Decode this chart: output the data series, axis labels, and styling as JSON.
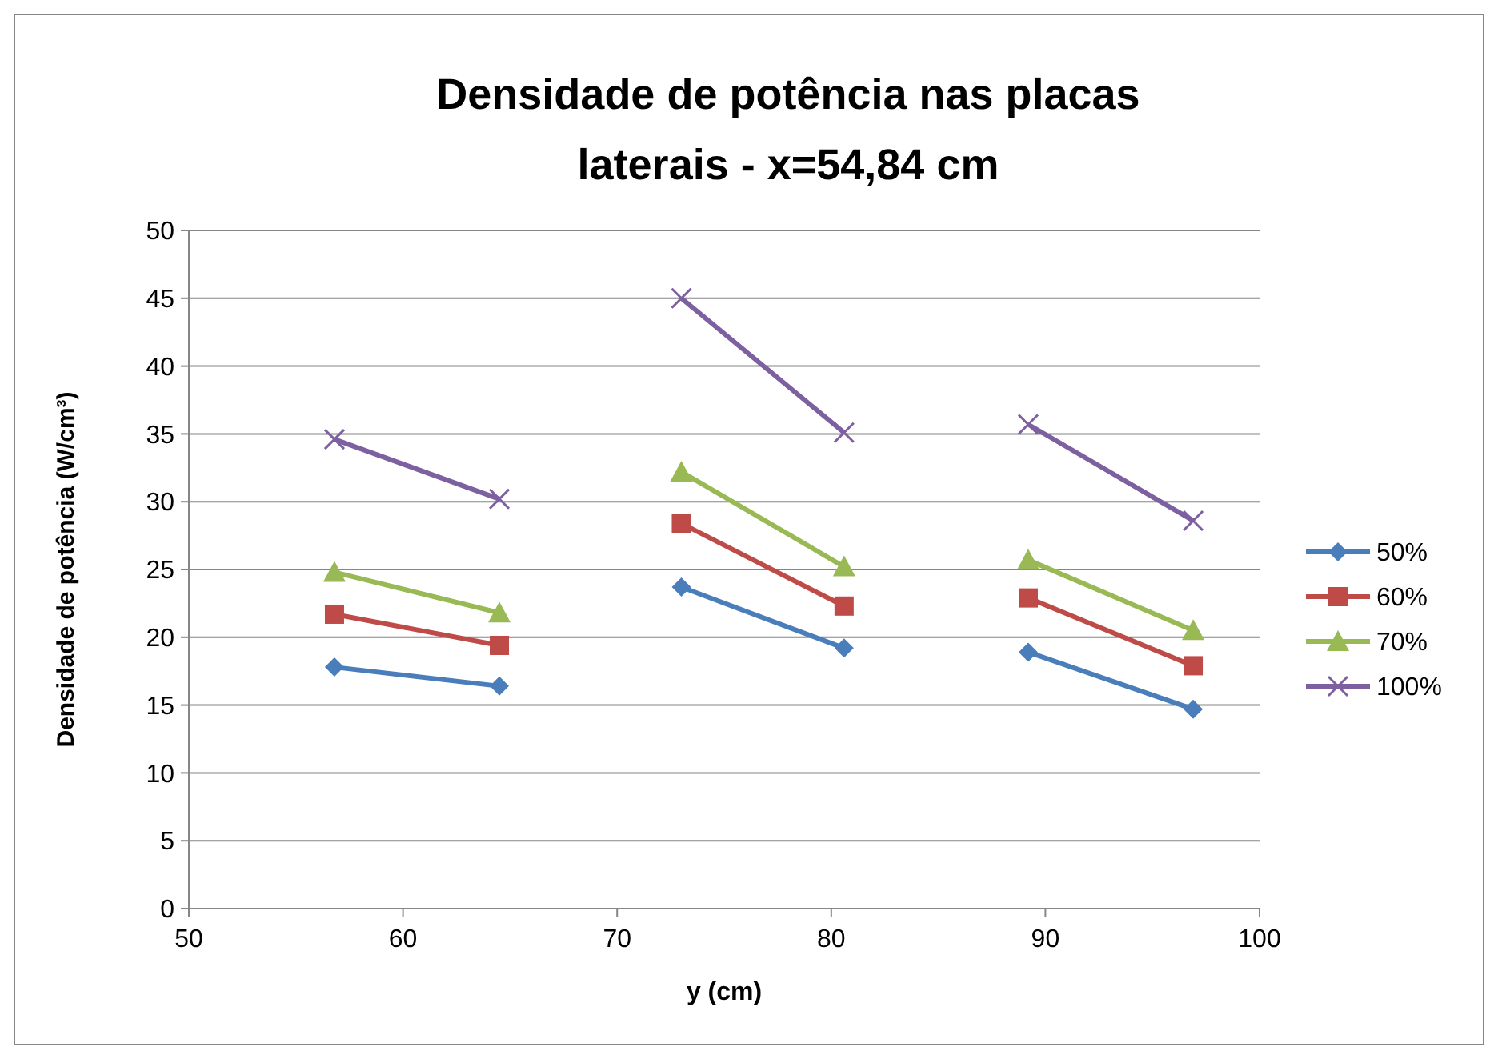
{
  "chart_data": {
    "type": "line",
    "title": "Densidade de potência nas placas laterais - x=54,84 cm",
    "xlabel": "y (cm)",
    "ylabel": "Densidade de potência (W/cm³)",
    "x": [
      56.8,
      64.5,
      null,
      73.0,
      80.6,
      null,
      89.2,
      96.9
    ],
    "series": [
      {
        "name": "50%",
        "color": "#4a7ebb",
        "marker": "diamond",
        "values": [
          17.8,
          16.4,
          null,
          23.7,
          19.2,
          null,
          18.9,
          14.7
        ]
      },
      {
        "name": "60%",
        "color": "#be4b48",
        "marker": "square",
        "values": [
          21.7,
          19.4,
          null,
          28.4,
          22.3,
          null,
          22.9,
          17.9
        ]
      },
      {
        "name": "70%",
        "color": "#98b954",
        "marker": "triangle",
        "values": [
          24.8,
          21.8,
          null,
          32.2,
          25.2,
          null,
          25.7,
          20.5
        ]
      },
      {
        "name": "100%",
        "color": "#7d60a0",
        "marker": "cross",
        "values": [
          34.6,
          30.2,
          null,
          45.0,
          35.1,
          null,
          35.7,
          28.6
        ]
      }
    ],
    "xlim": [
      50,
      100
    ],
    "xticks": [
      50,
      60,
      70,
      80,
      90,
      100
    ],
    "ylim": [
      0,
      50
    ],
    "yticks": [
      0,
      5,
      10,
      15,
      20,
      25,
      30,
      35,
      40,
      45,
      50
    ],
    "grid": "y",
    "legend": "right",
    "line_style": "solid"
  }
}
